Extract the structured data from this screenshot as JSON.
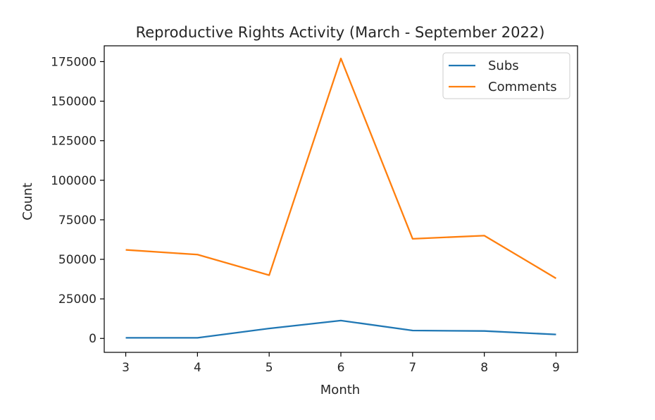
{
  "chart_data": {
    "type": "line",
    "title": "Reproductive Rights Activity (March - September 2022)",
    "xlabel": "Month",
    "ylabel": "Count",
    "x": [
      3,
      4,
      5,
      6,
      7,
      8,
      9
    ],
    "xlim": [
      2.7,
      9.3
    ],
    "ylim": [
      -8800,
      185000
    ],
    "xticks": [
      "3",
      "4",
      "5",
      "6",
      "7",
      "8",
      "9"
    ],
    "yticks": [
      0,
      25000,
      50000,
      75000,
      100000,
      125000,
      150000,
      175000
    ],
    "ytick_labels": [
      "0",
      "25000",
      "50000",
      "75000",
      "100000",
      "125000",
      "150000",
      "175000"
    ],
    "grid": false,
    "legend_position": "top-right",
    "series": [
      {
        "name": "Subs",
        "color": "#1f77b4",
        "values": [
          400,
          400,
          6300,
          11300,
          5000,
          4700,
          2500
        ]
      },
      {
        "name": "Comments",
        "color": "#ff7f0e",
        "values": [
          56000,
          53000,
          40000,
          177000,
          63000,
          65000,
          38000
        ]
      }
    ]
  }
}
